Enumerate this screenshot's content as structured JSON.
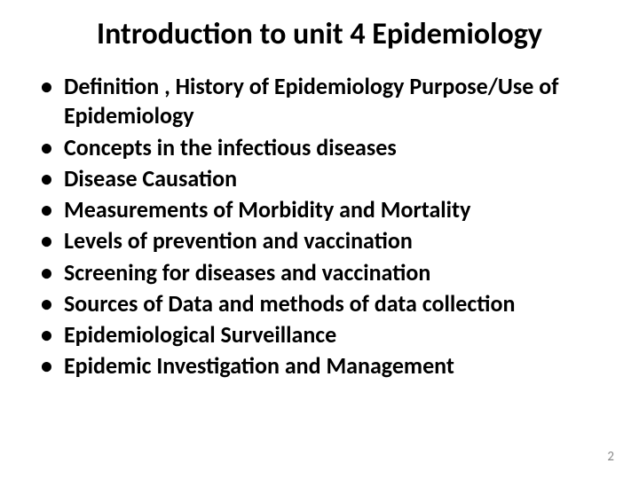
{
  "slide": {
    "title": "Introduction to unit 4 Epidemiology",
    "title_fontsize": 34,
    "title_weight": 700,
    "title_color": "#000000",
    "bullet_fontsize": 26,
    "bullet_weight": 700,
    "bullet_color": "#000000",
    "bullets": [
      "Definition , History of Epidemiology Purpose/Use of Epidemiology",
      "Concepts in the infectious diseases",
      "Disease Causation",
      "Measurements of Morbidity and Mortality",
      "Levels of prevention and vaccination",
      "Screening for diseases and vaccination",
      "Sources of Data and methods of data collection",
      "Epidemiological Surveillance",
      "Epidemic Investigation and Management"
    ],
    "page_number": "2",
    "page_number_fontsize": 15,
    "page_number_color": "#8a8a8a",
    "background_color": "#ffffff"
  }
}
